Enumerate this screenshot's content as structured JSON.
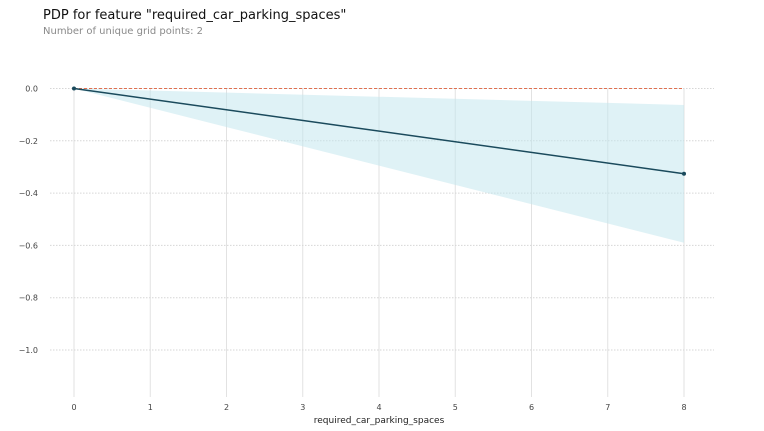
{
  "chart_data": {
    "type": "line",
    "title": "PDP for feature \"required_car_parking_spaces\"",
    "subtitle": "Number of unique grid points: 2",
    "xlabel": "required_car_parking_spaces",
    "ylabel": "",
    "xlim": [
      -0.35,
      8.4
    ],
    "ylim": [
      -1.2,
      0.02
    ],
    "x_ticks": [
      0,
      1,
      2,
      3,
      4,
      5,
      6,
      7,
      8
    ],
    "y_ticks": [
      0.0,
      -0.2,
      -0.4,
      -0.6,
      -0.8,
      -1.0
    ],
    "y_tick_labels": [
      "0.0",
      "−0.2",
      "−0.4",
      "−0.6",
      "−0.8",
      "−1.0"
    ],
    "grid": true,
    "series": [
      {
        "x": [
          0,
          8
        ],
        "values": [
          0.0,
          -0.326
        ],
        "color": "#1a4a5c"
      }
    ],
    "band": {
      "x": [
        0,
        8
      ],
      "upper": [
        0.0,
        -0.063
      ],
      "lower": [
        0.0,
        -0.59
      ],
      "color": "#bfe6ee"
    },
    "reference_line": {
      "y": 0.0,
      "color": "#e07050"
    }
  }
}
